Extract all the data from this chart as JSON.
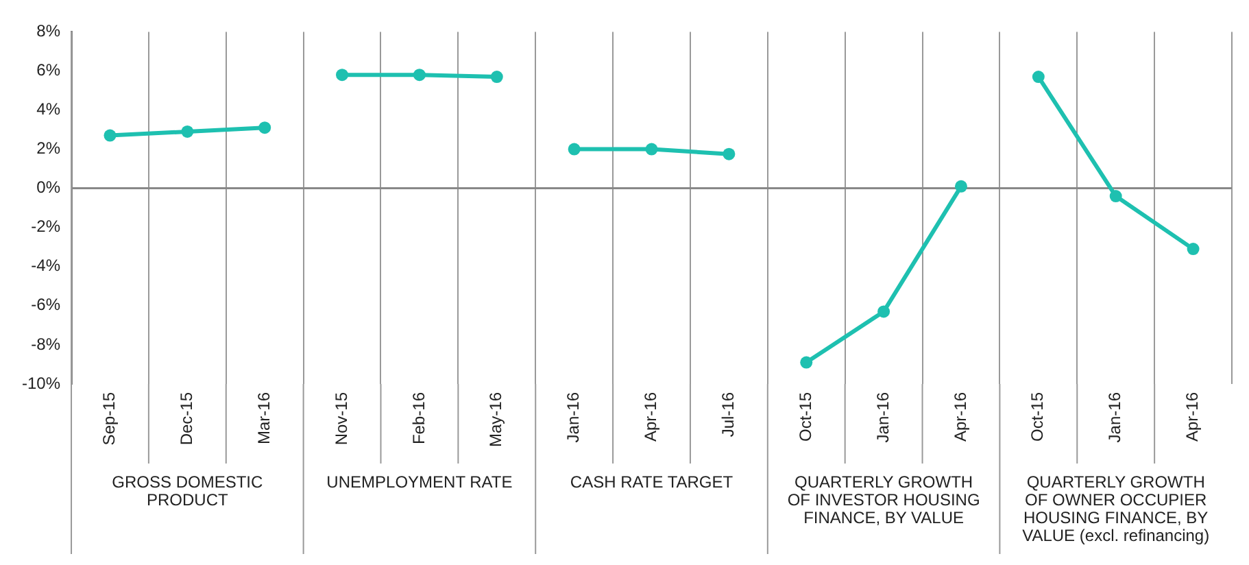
{
  "chart_data": {
    "type": "line",
    "categories": [
      "Sep-15",
      "Dec-15",
      "Mar-16",
      "Nov-15",
      "Feb-16",
      "May-16",
      "Jan-16",
      "Apr-16",
      "Jul-16",
      "Oct-15",
      "Jan-16",
      "Apr-16",
      "Oct-15",
      "Jan-16",
      "Apr-16"
    ],
    "series": [
      {
        "color": "#1ec0b0",
        "values": [
          2.7,
          2.9,
          3.1,
          null,
          null,
          null,
          null,
          null,
          null,
          null,
          null,
          null,
          null,
          null,
          null
        ]
      },
      {
        "color": "#1ec0b0",
        "values": [
          null,
          null,
          null,
          5.8,
          5.8,
          5.7,
          null,
          null,
          null,
          null,
          null,
          null,
          null,
          null,
          null
        ]
      },
      {
        "color": "#1ec0b0",
        "values": [
          null,
          null,
          null,
          null,
          null,
          null,
          2.0,
          2.0,
          1.75,
          null,
          null,
          null,
          null,
          null,
          null
        ]
      },
      {
        "color": "#1ec0b0",
        "values": [
          null,
          null,
          null,
          null,
          null,
          null,
          null,
          null,
          null,
          -8.9,
          -6.3,
          0.1,
          null,
          null,
          null
        ]
      },
      {
        "color": "#1ec0b0",
        "values": [
          null,
          null,
          null,
          null,
          null,
          null,
          null,
          null,
          null,
          null,
          null,
          null,
          5.7,
          -0.4,
          -3.1
        ]
      }
    ],
    "annotations": [
      "GROSS DOMESTIC PRODUCT",
      "UNEMPLOYMENT RATE",
      "CASH RATE TARGET",
      "QUARTERLY GROWTH OF INVESTOR HOUSING FINANCE, BY VALUE",
      "QUARTERLY GROWTH OF OWNER OCCUPIER HOUSING FINANCE, BY VALUE (excl. refinancing)"
    ],
    "ylim": [
      -10,
      8
    ],
    "yticks": [
      {
        "value": -10,
        "label": "-10%"
      },
      {
        "value": -8,
        "label": "-8%"
      },
      {
        "value": -6,
        "label": "-6%"
      },
      {
        "value": -4,
        "label": "-4%"
      },
      {
        "value": -2,
        "label": "-2%"
      },
      {
        "value": 0,
        "label": "0%"
      },
      {
        "value": 2,
        "label": "2%"
      },
      {
        "value": 4,
        "label": "4%"
      },
      {
        "value": 6,
        "label": "6%"
      },
      {
        "value": 8,
        "label": "8%"
      }
    ],
    "grid": "x",
    "legend": false,
    "marker": "circle",
    "line_style": "solid"
  }
}
